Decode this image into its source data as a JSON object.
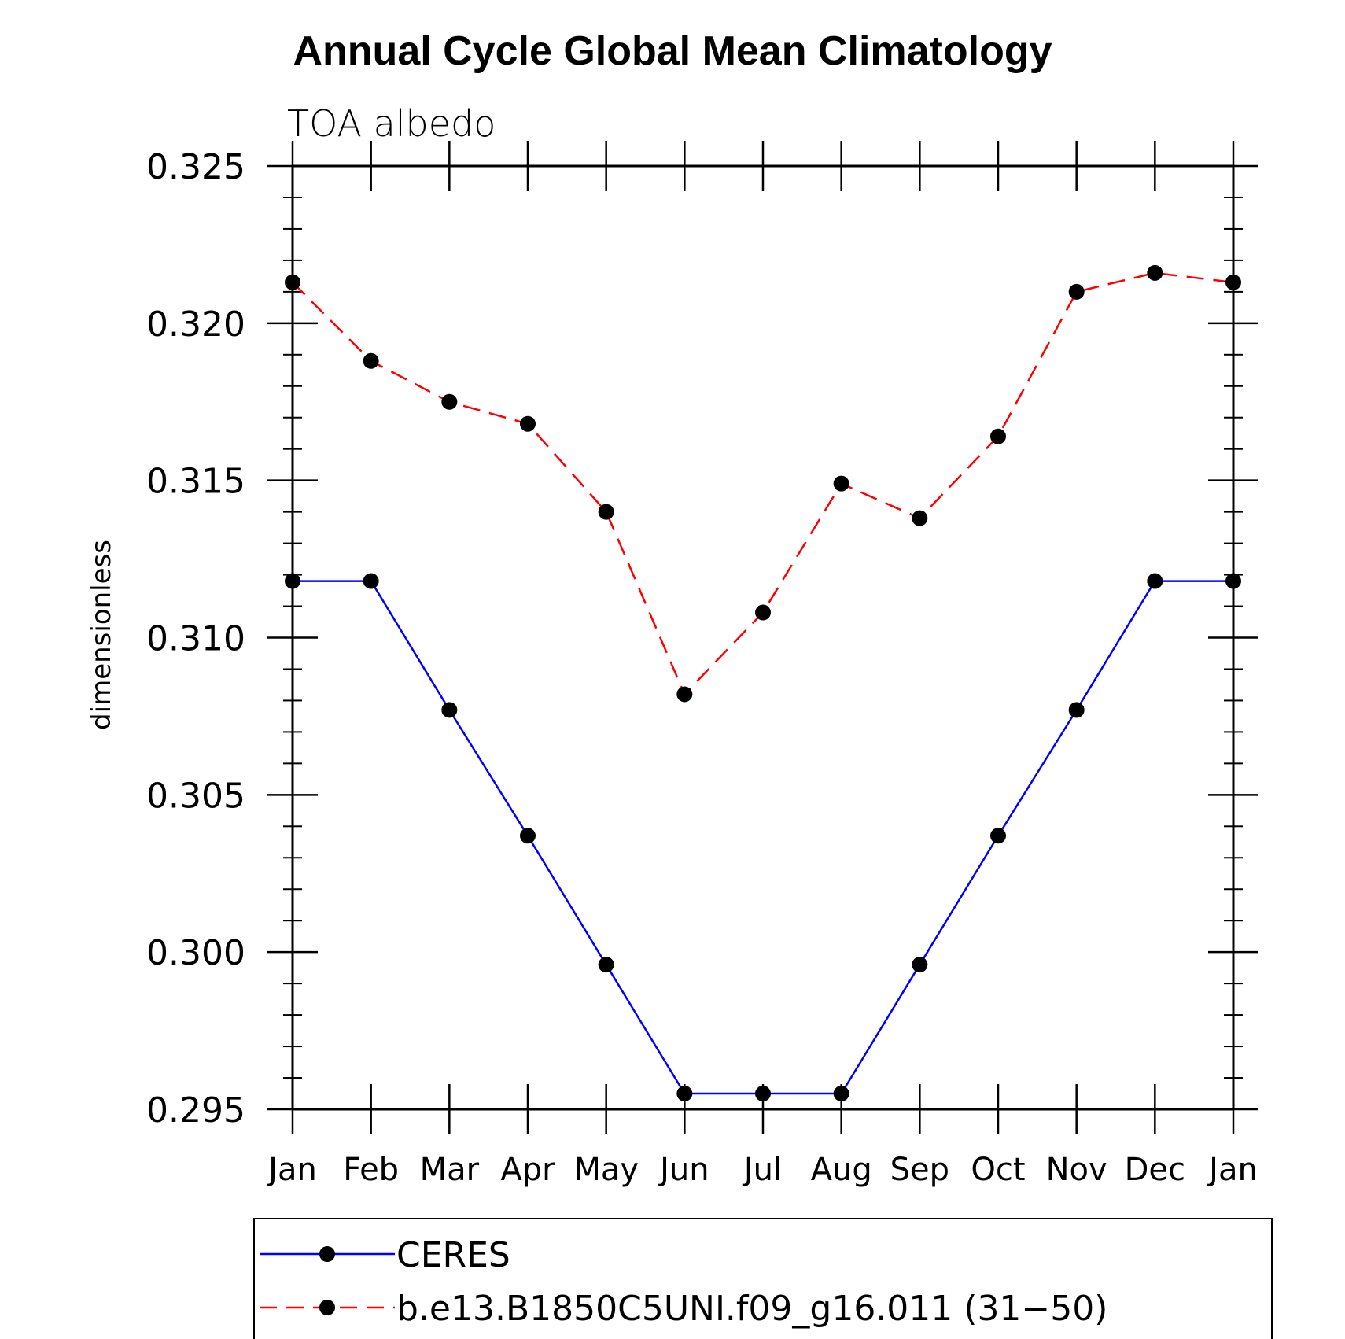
{
  "chart_data": {
    "type": "line",
    "title": "Annual Cycle Global Mean Climatology",
    "subtitle": "TOA albedo",
    "xlabel": "",
    "ylabel": "dimensionless",
    "categories": [
      "Jan",
      "Feb",
      "Mar",
      "Apr",
      "May",
      "Jun",
      "Jul",
      "Aug",
      "Sep",
      "Oct",
      "Nov",
      "Dec",
      "Jan"
    ],
    "ylim": [
      0.295,
      0.325
    ],
    "yticks": [
      "0.325",
      "0.320",
      "0.315",
      "0.310",
      "0.305",
      "0.300",
      "0.295"
    ],
    "ytick_values": [
      0.325,
      0.32,
      0.315,
      0.31,
      0.305,
      0.3,
      0.295
    ],
    "grid": false,
    "legend_position": "bottom",
    "series": [
      {
        "name": "CERES",
        "color": "#0000ff",
        "style": "solid",
        "marker": "filled-circle",
        "values": [
          0.3118,
          0.3118,
          0.3077,
          0.3037,
          0.2996,
          0.2955,
          0.2955,
          0.2955,
          0.2996,
          0.3037,
          0.3077,
          0.3118,
          0.3118
        ]
      },
      {
        "name": "b.e13.B1850C5UNI.f09_g16.011 (31−50)",
        "color": "#ff0000",
        "style": "dashed",
        "marker": "filled-circle",
        "values": [
          0.3213,
          0.3188,
          0.3175,
          0.3168,
          0.314,
          0.3082,
          0.3108,
          0.3149,
          0.3138,
          0.3164,
          0.321,
          0.3216,
          0.3213
        ]
      }
    ]
  }
}
